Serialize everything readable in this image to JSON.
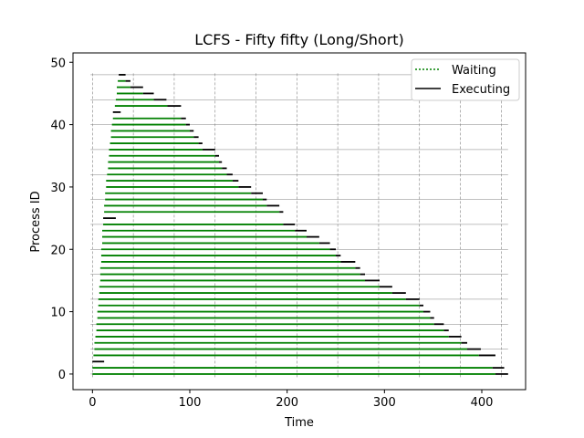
{
  "chart_data": {
    "type": "timeline",
    "title": "LCFS - Fifty fifty (Long/Short)",
    "xlabel": "Time",
    "ylabel": "Process ID",
    "xlim": [
      -20,
      445
    ],
    "ylim": [
      -2.5,
      51.5
    ],
    "xticks": [
      0,
      100,
      200,
      300,
      400
    ],
    "yticks": [
      0,
      10,
      20,
      30,
      40,
      50
    ],
    "vgrid_at": [
      0,
      42,
      84,
      126,
      168,
      210,
      252,
      294,
      336,
      378,
      420
    ],
    "hgrid_at": [
      0,
      4,
      8,
      12,
      16,
      20,
      24,
      28,
      32,
      36,
      40,
      44,
      48
    ],
    "grid": true,
    "legend_position": "top-right",
    "colors": {
      "waiting": "#008000",
      "executing": "#000000",
      "grid": "#808080"
    },
    "series": [
      {
        "name": "Waiting",
        "style": "dotted",
        "color": "#008000"
      },
      {
        "name": "Executing",
        "style": "solid",
        "color": "#000000"
      }
    ],
    "processes": [
      {
        "id": 0,
        "arrival": 0,
        "start": 414,
        "end": 427
      },
      {
        "id": 1,
        "arrival": 0,
        "start": 411,
        "end": 423
      },
      {
        "id": 2,
        "arrival": 0,
        "start": 0,
        "end": 12
      },
      {
        "id": 3,
        "arrival": 1,
        "start": 397,
        "end": 414
      },
      {
        "id": 4,
        "arrival": 2,
        "start": 385,
        "end": 399
      },
      {
        "id": 5,
        "arrival": 2,
        "start": 379,
        "end": 385
      },
      {
        "id": 6,
        "arrival": 3,
        "start": 366,
        "end": 379
      },
      {
        "id": 7,
        "arrival": 4,
        "start": 361,
        "end": 366
      },
      {
        "id": 8,
        "arrival": 4,
        "start": 351,
        "end": 361
      },
      {
        "id": 9,
        "arrival": 5,
        "start": 347,
        "end": 351
      },
      {
        "id": 10,
        "arrival": 5,
        "start": 340,
        "end": 347
      },
      {
        "id": 11,
        "arrival": 6,
        "start": 336,
        "end": 340
      },
      {
        "id": 12,
        "arrival": 6,
        "start": 322,
        "end": 336
      },
      {
        "id": 13,
        "arrival": 7,
        "start": 308,
        "end": 322
      },
      {
        "id": 14,
        "arrival": 7,
        "start": 295,
        "end": 308
      },
      {
        "id": 15,
        "arrival": 8,
        "start": 280,
        "end": 295
      },
      {
        "id": 16,
        "arrival": 8,
        "start": 275,
        "end": 280
      },
      {
        "id": 17,
        "arrival": 8,
        "start": 270,
        "end": 275
      },
      {
        "id": 18,
        "arrival": 9,
        "start": 255,
        "end": 270
      },
      {
        "id": 19,
        "arrival": 9,
        "start": 250,
        "end": 255
      },
      {
        "id": 20,
        "arrival": 9,
        "start": 244,
        "end": 250
      },
      {
        "id": 21,
        "arrival": 10,
        "start": 233,
        "end": 244
      },
      {
        "id": 22,
        "arrival": 10,
        "start": 220,
        "end": 233
      },
      {
        "id": 23,
        "arrival": 10,
        "start": 208,
        "end": 220
      },
      {
        "id": 24,
        "arrival": 11,
        "start": 196,
        "end": 208
      },
      {
        "id": 25,
        "arrival": 11,
        "start": 11,
        "end": 24
      },
      {
        "id": 26,
        "arrival": 12,
        "start": 192,
        "end": 196
      },
      {
        "id": 27,
        "arrival": 12,
        "start": 179,
        "end": 192
      },
      {
        "id": 28,
        "arrival": 13,
        "start": 175,
        "end": 179
      },
      {
        "id": 29,
        "arrival": 13,
        "start": 163,
        "end": 175
      },
      {
        "id": 30,
        "arrival": 14,
        "start": 150,
        "end": 163
      },
      {
        "id": 31,
        "arrival": 14,
        "start": 144,
        "end": 150
      },
      {
        "id": 32,
        "arrival": 15,
        "start": 138,
        "end": 144
      },
      {
        "id": 33,
        "arrival": 16,
        "start": 133,
        "end": 138
      },
      {
        "id": 34,
        "arrival": 16,
        "start": 130,
        "end": 133
      },
      {
        "id": 35,
        "arrival": 17,
        "start": 126,
        "end": 130
      },
      {
        "id": 36,
        "arrival": 17,
        "start": 113,
        "end": 126
      },
      {
        "id": 37,
        "arrival": 18,
        "start": 109,
        "end": 113
      },
      {
        "id": 38,
        "arrival": 19,
        "start": 104,
        "end": 109
      },
      {
        "id": 39,
        "arrival": 19,
        "start": 100,
        "end": 104
      },
      {
        "id": 40,
        "arrival": 20,
        "start": 96,
        "end": 100
      },
      {
        "id": 41,
        "arrival": 21,
        "start": 91,
        "end": 96
      },
      {
        "id": 42,
        "arrival": 21,
        "start": 21,
        "end": 29
      },
      {
        "id": 43,
        "arrival": 23,
        "start": 77,
        "end": 91
      },
      {
        "id": 44,
        "arrival": 24,
        "start": 63,
        "end": 76
      },
      {
        "id": 45,
        "arrival": 25,
        "start": 52,
        "end": 63
      },
      {
        "id": 46,
        "arrival": 25,
        "start": 39,
        "end": 52
      },
      {
        "id": 47,
        "arrival": 26,
        "start": 34,
        "end": 39
      },
      {
        "id": 48,
        "arrival": 27,
        "start": 27,
        "end": 34
      }
    ]
  }
}
